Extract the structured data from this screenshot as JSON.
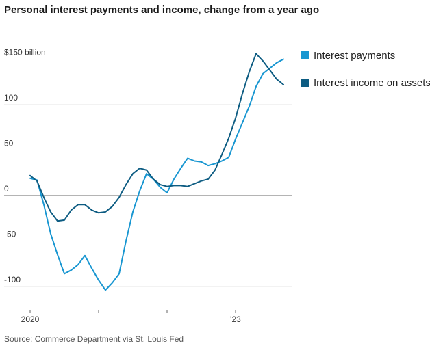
{
  "title": "Personal interest payments and income, change from a year ago",
  "source": "Source: Commerce Department via St. Louis Fed",
  "colors": {
    "interest_payments": "#1896d1",
    "interest_income": "#0d5c82",
    "gridline": "#e6e6e6",
    "zero_line": "#888888",
    "axis": "#666666"
  },
  "chart_data": {
    "type": "line",
    "title": "Personal interest payments and income, change from a year ago",
    "xlabel": "",
    "ylabel": "",
    "ylim": [
      -110,
      155
    ],
    "xlim": [
      0,
      38
    ],
    "grid": true,
    "legend_placement": "right",
    "y_ticks": [
      {
        "value": 150,
        "label": "$150 billion"
      },
      {
        "value": 100,
        "label": "100"
      },
      {
        "value": 50,
        "label": "50"
      },
      {
        "value": 0,
        "label": "0"
      },
      {
        "value": -50,
        "label": "-50"
      },
      {
        "value": -100,
        "label": "-100"
      }
    ],
    "x_ticks": [
      {
        "value": 0,
        "label": "2020"
      },
      {
        "value": 10,
        "label": ""
      },
      {
        "value": 20,
        "label": ""
      },
      {
        "value": 30,
        "label": "'23"
      }
    ],
    "x": [
      0,
      1,
      2,
      3,
      4,
      5,
      6,
      7,
      8,
      9,
      10,
      11,
      12,
      13,
      14,
      15,
      16,
      17,
      18,
      19,
      20,
      21,
      22,
      23,
      24,
      25,
      26,
      27,
      28,
      29,
      30,
      31,
      32,
      33,
      34,
      35,
      36,
      37
    ],
    "series": [
      {
        "name": "Interest payments",
        "color": "#1896d1",
        "values": [
          19,
          17,
          -10,
          -42,
          -65,
          -86,
          -82,
          -76,
          -66,
          -80,
          -93,
          -104,
          -96,
          -86,
          -50,
          -18,
          5,
          24,
          18,
          9,
          3,
          18,
          30,
          41,
          38,
          37,
          33,
          35,
          38,
          42,
          62,
          80,
          98,
          120,
          134,
          140,
          146,
          150
        ]
      },
      {
        "name": "Interest income on assets",
        "color": "#0d5c82",
        "values": [
          22,
          16,
          -2,
          -18,
          -28,
          -27,
          -16,
          -10,
          -10,
          -16,
          -19,
          -18,
          -12,
          -2,
          12,
          24,
          30,
          28,
          18,
          12,
          10,
          11,
          11,
          10,
          13,
          16,
          18,
          28,
          45,
          63,
          85,
          112,
          136,
          156,
          148,
          138,
          128,
          122
        ]
      }
    ]
  }
}
